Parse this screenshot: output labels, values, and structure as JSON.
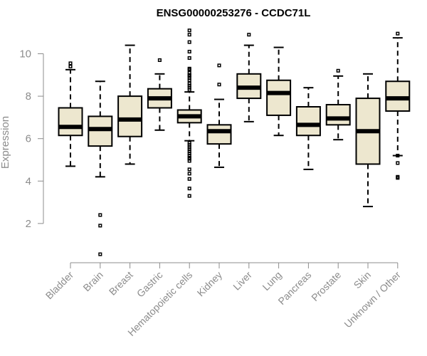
{
  "chart_data": {
    "type": "boxplot",
    "title": "ENSG00000253276 - CCDC71L",
    "xlabel": "",
    "ylabel": "Expression",
    "ylim": [
      0,
      11
    ],
    "yticks": [
      2,
      4,
      6,
      8,
      10
    ],
    "box_color": "#ede7cf",
    "categories": [
      "Bladder",
      "Brain",
      "Breast",
      "Gastric",
      "Hematopoietic cells",
      "Kidney",
      "Liver",
      "Lung",
      "Pancreas",
      "Prostate",
      "Skin",
      "Unknown / Other"
    ],
    "series": [
      {
        "name": "Bladder",
        "min": 4.7,
        "q1": 6.15,
        "median": 6.55,
        "q3": 7.45,
        "max": 9.25,
        "outliers": [
          9.4,
          9.55
        ]
      },
      {
        "name": "Brain",
        "min": 4.2,
        "q1": 5.65,
        "median": 6.45,
        "q3": 7.05,
        "max": 8.7,
        "outliers": [
          2.4,
          1.9,
          0.55
        ]
      },
      {
        "name": "Breast",
        "min": 4.8,
        "q1": 6.1,
        "median": 6.9,
        "q3": 8.0,
        "max": 10.4,
        "outliers": []
      },
      {
        "name": "Gastric",
        "min": 6.4,
        "q1": 7.45,
        "median": 7.9,
        "q3": 8.35,
        "max": 9.05,
        "outliers": [
          9.7
        ]
      },
      {
        "name": "Hematopoietic cells",
        "min": 5.9,
        "q1": 6.75,
        "median": 7.05,
        "q3": 7.35,
        "max": 8.2,
        "outliers": [
          11.1,
          10.9,
          10.55,
          10.1,
          9.8,
          9.3,
          9.25,
          9.1,
          9.0,
          8.95,
          8.85,
          8.75,
          8.6,
          8.5,
          8.4,
          8.3,
          5.8,
          5.7,
          5.6,
          5.5,
          5.4,
          5.3,
          5.2,
          5.1,
          5.05,
          4.95,
          4.55,
          4.35,
          4.1,
          3.65,
          3.3
        ]
      },
      {
        "name": "Kidney",
        "min": 4.65,
        "q1": 5.75,
        "median": 6.35,
        "q3": 6.65,
        "max": 7.85,
        "outliers": [
          9.45,
          8.55
        ]
      },
      {
        "name": "Liver",
        "min": 6.8,
        "q1": 7.9,
        "median": 8.4,
        "q3": 9.05,
        "max": 10.4,
        "outliers": [
          10.9
        ]
      },
      {
        "name": "Lung",
        "min": 6.15,
        "q1": 7.1,
        "median": 8.15,
        "q3": 8.75,
        "max": 10.3,
        "outliers": []
      },
      {
        "name": "Pancreas",
        "min": 4.55,
        "q1": 6.15,
        "median": 6.65,
        "q3": 7.5,
        "max": 8.4,
        "outliers": []
      },
      {
        "name": "Prostate",
        "min": 5.95,
        "q1": 6.65,
        "median": 6.95,
        "q3": 7.6,
        "max": 8.95,
        "outliers": [
          9.2
        ]
      },
      {
        "name": "Skin",
        "min": 2.8,
        "q1": 4.8,
        "median": 6.35,
        "q3": 7.9,
        "max": 9.05,
        "outliers": []
      },
      {
        "name": "Unknown / Other",
        "min": 5.2,
        "q1": 7.3,
        "median": 7.9,
        "q3": 8.7,
        "max": 10.75,
        "outliers": [
          10.95,
          5.2,
          4.85,
          4.2,
          4.15
        ]
      }
    ]
  }
}
